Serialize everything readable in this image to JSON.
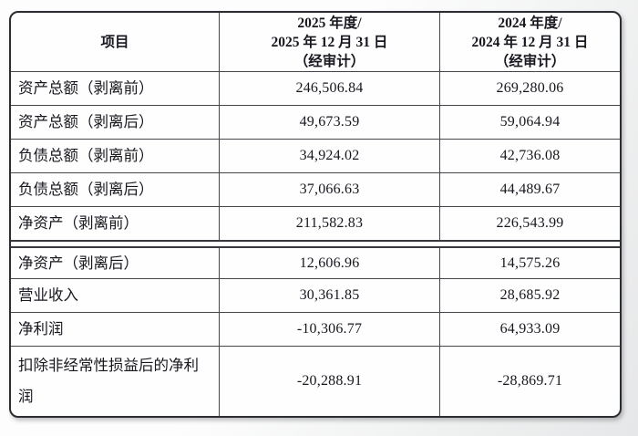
{
  "colors": {
    "text": "#17171f",
    "border_outer": "#2c2c33",
    "border_inner": "#45454b",
    "card_background": "#fefefe",
    "page_background_light": "#fdfdfd",
    "page_background_shade": "#e6e7e8"
  },
  "table": {
    "header": {
      "item_label": "项目",
      "col_2025": {
        "line1": "2025 年度/",
        "line2": "2025 年 12 月 31 日",
        "line3": "（经审计）"
      },
      "col_2024": {
        "line1": "2024 年度/",
        "line2": "2024 年 12 月 31 日",
        "line3": "（经审计）"
      }
    },
    "rows": [
      {
        "label": "资产总额（剥离前）",
        "v2025": "246,506.84",
        "v2024": "269,280.06"
      },
      {
        "label": "资产总额（剥离后）",
        "v2025": "49,673.59",
        "v2024": "59,064.94"
      },
      {
        "label": "负债总额（剥离前）",
        "v2025": "34,924.02",
        "v2024": "42,736.08"
      },
      {
        "label": "负债总额（剥离后）",
        "v2025": "37,066.63",
        "v2024": "44,489.67"
      },
      {
        "label": "净资产（剥离前）",
        "v2025": "211,582.83",
        "v2024": "226,543.99"
      },
      {
        "label": "净资产（剥离后）",
        "v2025": "12,606.96",
        "v2024": "14,575.26"
      },
      {
        "label": "营业收入",
        "v2025": "30,361.85",
        "v2024": "28,685.92"
      },
      {
        "label": "净利润",
        "v2025": "-10,306.77",
        "v2024": "64,933.09"
      },
      {
        "label": "扣除非经常性损益后的净利润",
        "v2025": "-20,288.91",
        "v2024": "-28,869.71"
      }
    ]
  }
}
